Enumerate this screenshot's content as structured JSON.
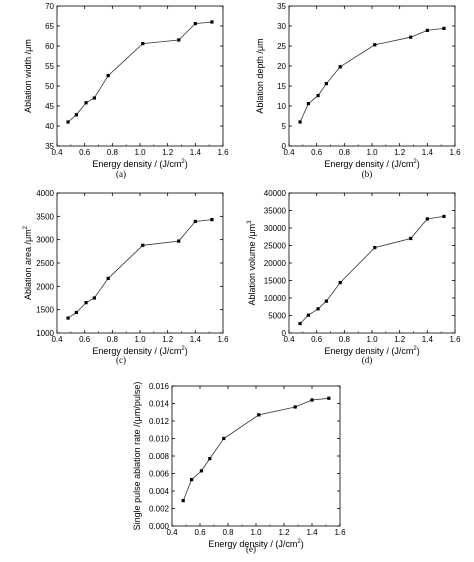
{
  "chart_data": [
    {
      "type": "line",
      "caption": "(a)",
      "xlabel": "Energy density / (J/cm",
      "xlabel_sup": "2",
      "xlabel_tail": ")",
      "ylabel": "Ablation width /μm",
      "ylabel_sup": "",
      "xlim": [
        0.4,
        1.6
      ],
      "ylim": [
        35,
        70
      ],
      "xticks": [
        "0.4",
        "0.6",
        "0.8",
        "1.0",
        "1.2",
        "1.4",
        "1.6"
      ],
      "yticks": [
        "35",
        "40",
        "45",
        "50",
        "55",
        "60",
        "65",
        "70"
      ],
      "x": [
        0.48,
        0.54,
        0.61,
        0.67,
        0.77,
        1.02,
        1.28,
        1.4,
        1.52
      ],
      "y": [
        41.0,
        42.8,
        45.8,
        47.0,
        52.6,
        60.6,
        61.5,
        65.6,
        66.0
      ]
    },
    {
      "type": "line",
      "caption": "(b)",
      "xlabel": "Energy density / (J/cm",
      "xlabel_sup": "2",
      "xlabel_tail": ")",
      "ylabel": "Ablation depth /μm",
      "ylabel_sup": "",
      "xlim": [
        0.4,
        1.6
      ],
      "ylim": [
        0,
        35
      ],
      "xticks": [
        "0.4",
        "0.6",
        "0.8",
        "1.0",
        "1.2",
        "1.4",
        "1.6"
      ],
      "yticks": [
        "0",
        "5",
        "10",
        "15",
        "20",
        "25",
        "30",
        "35"
      ],
      "x": [
        0.48,
        0.54,
        0.61,
        0.67,
        0.77,
        1.02,
        1.28,
        1.4,
        1.52
      ],
      "y": [
        6.0,
        10.6,
        12.6,
        15.6,
        19.8,
        25.3,
        27.2,
        28.9,
        29.4
      ]
    },
    {
      "type": "line",
      "caption": "(c)",
      "xlabel": "Energy density / (J/cm",
      "xlabel_sup": "2",
      "xlabel_tail": ")",
      "ylabel": "Ablation area /μm",
      "ylabel_sup": "2",
      "xlim": [
        0.4,
        1.6
      ],
      "ylim": [
        1000,
        4000
      ],
      "xticks": [
        "0.4",
        "0.6",
        "0.8",
        "1.0",
        "1.2",
        "1.4",
        "1.6"
      ],
      "yticks": [
        "1000",
        "1500",
        "2000",
        "2500",
        "3000",
        "3500",
        "4000"
      ],
      "x": [
        0.48,
        0.54,
        0.61,
        0.67,
        0.77,
        1.02,
        1.28,
        1.4,
        1.52
      ],
      "y": [
        1320,
        1440,
        1650,
        1750,
        2170,
        2880,
        2970,
        3390,
        3430
      ]
    },
    {
      "type": "line",
      "caption": "(d)",
      "xlabel": "Energy density / (J/cm",
      "xlabel_sup": "2",
      "xlabel_tail": ")",
      "ylabel": "Ablation volume /μm",
      "ylabel_sup": "3",
      "xlim": [
        0.4,
        1.6
      ],
      "ylim": [
        0,
        40000
      ],
      "xticks": [
        "0.4",
        "0.6",
        "0.8",
        "1.0",
        "1.2",
        "1.4",
        "1.6"
      ],
      "yticks": [
        "0",
        "5000",
        "10000",
        "15000",
        "20000",
        "25000",
        "30000",
        "35000",
        "40000"
      ],
      "x": [
        0.48,
        0.54,
        0.61,
        0.67,
        0.77,
        1.02,
        1.28,
        1.4,
        1.52
      ],
      "y": [
        2700,
        5100,
        6900,
        9100,
        14400,
        24400,
        27000,
        32600,
        33300
      ]
    },
    {
      "type": "line",
      "caption": "(e)",
      "xlabel": "Energy density / (J/cm",
      "xlabel_sup": "2",
      "xlabel_tail": ")",
      "ylabel": "Single pulse ablation rate /(μm/pulse)",
      "ylabel_sup": "",
      "xlim": [
        0.4,
        1.6
      ],
      "ylim": [
        0,
        0.016
      ],
      "xticks": [
        "0.4",
        "0.6",
        "0.8",
        "1.0",
        "1.2",
        "1.4",
        "1.6"
      ],
      "yticks": [
        "0.000",
        "0.002",
        "0.004",
        "0.006",
        "0.008",
        "0.010",
        "0.012",
        "0.014",
        "0.016"
      ],
      "x": [
        0.48,
        0.54,
        0.61,
        0.67,
        0.77,
        1.02,
        1.28,
        1.4,
        1.52
      ],
      "y": [
        0.0029,
        0.0053,
        0.0063,
        0.0077,
        0.01,
        0.0127,
        0.0136,
        0.0144,
        0.0146
      ]
    }
  ]
}
